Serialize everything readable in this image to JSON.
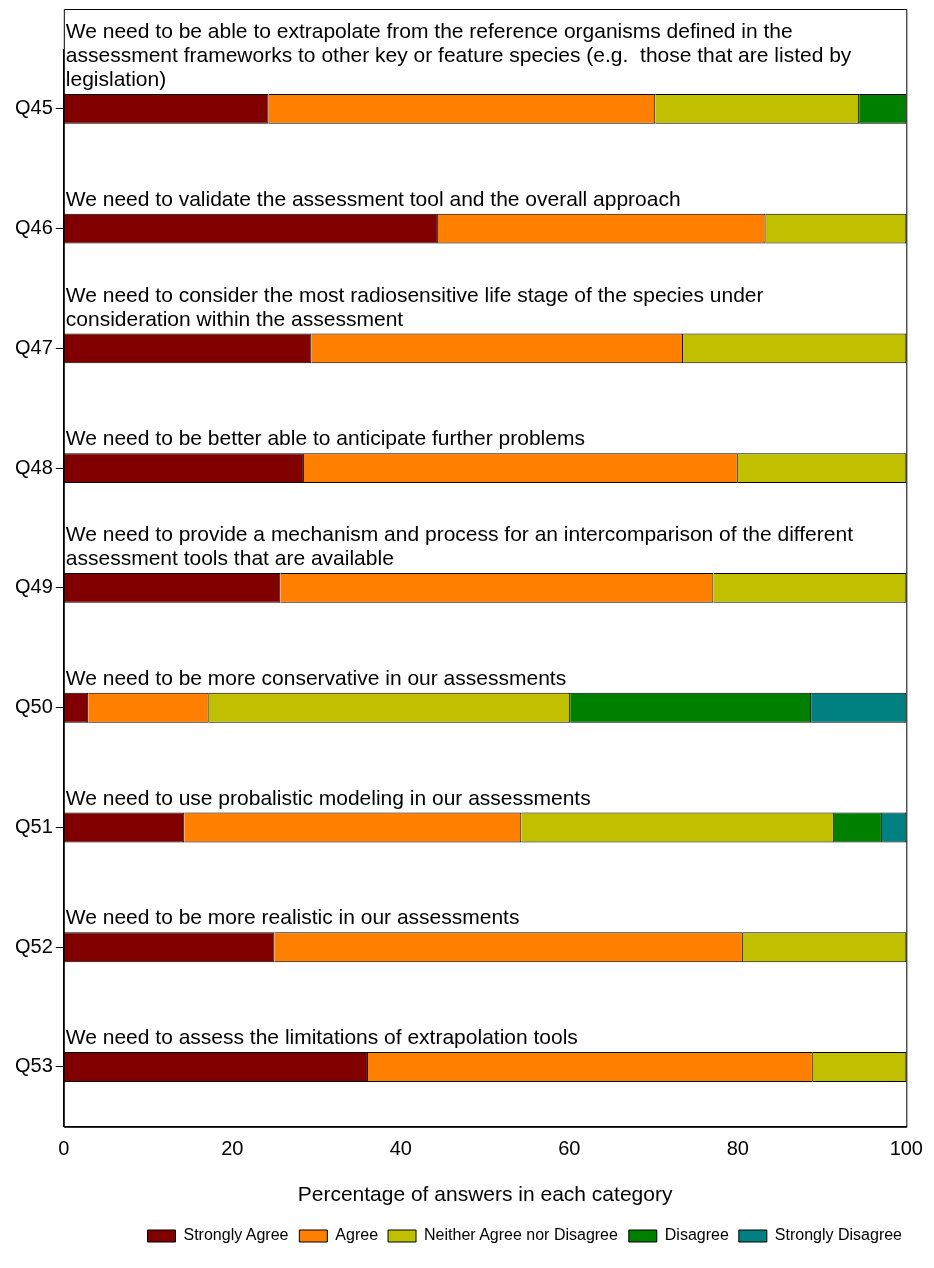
{
  "chart_data": {
    "type": "bar",
    "orientation": "horizontal",
    "stacked": true,
    "categories": [
      "Q45",
      "Q46",
      "Q47",
      "Q48",
      "Q49",
      "Q50",
      "Q51",
      "Q52",
      "Q53"
    ],
    "series": [
      {
        "name": "Strongly Agree",
        "color": "#800000",
        "values": [
          24.3,
          44.4,
          29.4,
          28.5,
          25.7,
          2.9,
          14.3,
          25,
          36.1
        ]
      },
      {
        "name": "Agree",
        "color": "#ff8000",
        "values": [
          45.9,
          38.9,
          44.1,
          51.5,
          51.4,
          14.3,
          40,
          55.6,
          52.8
        ]
      },
      {
        "name": "Neither Agree nor Disagree",
        "color": "#c0c000",
        "values": [
          24.2,
          16.7,
          26.5,
          20,
          22.9,
          42.9,
          37.1,
          19.4,
          11.1
        ]
      },
      {
        "name": "Disagree",
        "color": "#008000",
        "values": [
          5.6,
          0,
          0,
          0,
          0,
          28.6,
          5.7,
          0,
          0
        ]
      },
      {
        "name": "Strongly Disagree",
        "color": "#008080",
        "values": [
          0,
          0,
          0,
          0,
          0,
          11.3,
          2.9,
          0,
          0
        ]
      }
    ],
    "xlim": [
      0,
      100
    ],
    "xticks": [
      0,
      20,
      40,
      60,
      80,
      100
    ],
    "xlabel": "Percentage of answers in each category",
    "grid": false,
    "legend": "bottom right",
    "annotations": [
      "We need to be able to extrapolate from the reference organisms defined in the assessment frameworks to other key or feature species (e.g.  those that are listed by legislation)",
      "We need to validate the assessment tool and the overall approach",
      "We need to consider the most radiosensitive life stage of the species under consideration within the assessment",
      "We need to be better able to anticipate further problems",
      "We need to provide a mechanism and process for an intercomparison of the different assessment tools that are available",
      "We need to be more conservative in our assessments",
      "We need to use probalistic modeling in our assessments",
      "We need to be more realistic in our assessments",
      "We need to assess the limitations of extrapolation tools"
    ]
  }
}
